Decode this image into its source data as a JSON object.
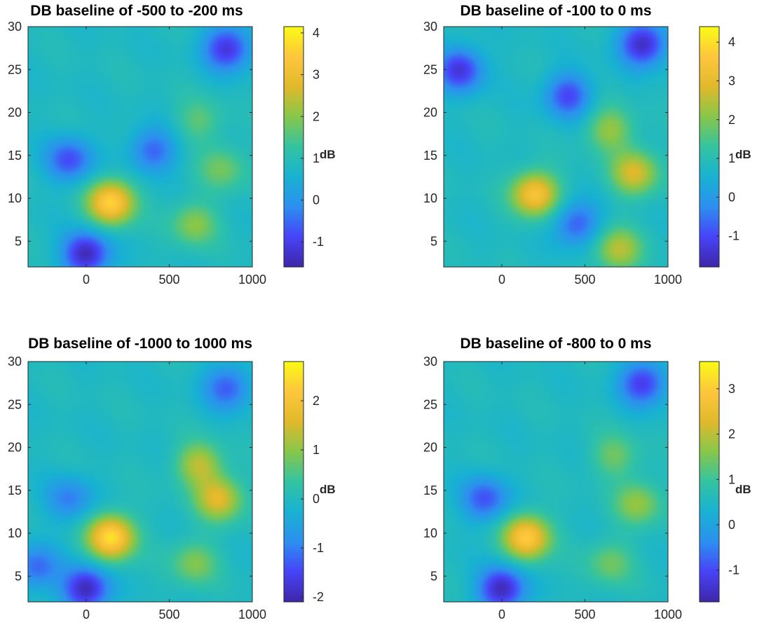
{
  "chart_data": [
    {
      "type": "heatmap",
      "title": "DB baseline of -500 to -200 ms",
      "xlim": [
        -350,
        1000
      ],
      "ylim": [
        2,
        30
      ],
      "xticks": [
        0,
        500,
        1000
      ],
      "yticks": [
        5,
        10,
        15,
        20,
        25,
        30
      ],
      "colorbar": {
        "label": "dB",
        "range": [
          -1.6,
          4.15
        ],
        "ticks": [
          -1,
          0,
          1,
          2,
          3,
          4
        ]
      },
      "features": [
        {
          "x": 150,
          "y": 9.5,
          "value": 3.6
        },
        {
          "x": 650,
          "y": 7.0,
          "value": 2.0
        },
        {
          "x": 820,
          "y": 13.5,
          "value": 1.8
        },
        {
          "x": 680,
          "y": 19.0,
          "value": 1.6
        },
        {
          "x": 0,
          "y": 3.5,
          "value": -1.5
        },
        {
          "x": -100,
          "y": 14.5,
          "value": -0.8
        },
        {
          "x": 400,
          "y": 15.5,
          "value": -0.6
        },
        {
          "x": 850,
          "y": 27.5,
          "value": -1.2
        }
      ]
    },
    {
      "type": "heatmap",
      "title": "DB baseline of -100 to 0 ms",
      "xlim": [
        -350,
        1000
      ],
      "ylim": [
        2,
        30
      ],
      "xticks": [
        0,
        500,
        1000
      ],
      "yticks": [
        5,
        10,
        15,
        20,
        25,
        30
      ],
      "colorbar": {
        "label": "dB",
        "range": [
          -1.8,
          4.4
        ],
        "ticks": [
          -1,
          0,
          1,
          2,
          3,
          4
        ]
      },
      "features": [
        {
          "x": 200,
          "y": 10.5,
          "value": 3.5
        },
        {
          "x": 800,
          "y": 13.0,
          "value": 2.8
        },
        {
          "x": 650,
          "y": 18.0,
          "value": 2.2
        },
        {
          "x": 700,
          "y": 4.0,
          "value": 2.5
        },
        {
          "x": -250,
          "y": 25.0,
          "value": -1.3
        },
        {
          "x": 850,
          "y": 28.0,
          "value": -1.6
        },
        {
          "x": 400,
          "y": 22.0,
          "value": -1.0
        },
        {
          "x": 450,
          "y": 7.0,
          "value": -0.8
        }
      ]
    },
    {
      "type": "heatmap",
      "title": "DB baseline of -1000 to 1000 ms",
      "xlim": [
        -350,
        1000
      ],
      "ylim": [
        2,
        30
      ],
      "xticks": [
        0,
        500,
        1000
      ],
      "yticks": [
        5,
        10,
        15,
        20,
        25,
        30
      ],
      "colorbar": {
        "label": "dB",
        "range": [
          -2.1,
          2.8
        ],
        "ticks": [
          -2,
          -1,
          0,
          1,
          2
        ]
      },
      "features": [
        {
          "x": 150,
          "y": 9.5,
          "value": 2.5
        },
        {
          "x": 800,
          "y": 14.0,
          "value": 1.6
        },
        {
          "x": 680,
          "y": 18.0,
          "value": 1.3
        },
        {
          "x": 650,
          "y": 6.5,
          "value": 0.9
        },
        {
          "x": 0,
          "y": 3.5,
          "value": -2.0
        },
        {
          "x": -100,
          "y": 14.0,
          "value": -1.0
        },
        {
          "x": -300,
          "y": 6.0,
          "value": -1.2
        },
        {
          "x": 850,
          "y": 27.0,
          "value": -1.3
        }
      ]
    },
    {
      "type": "heatmap",
      "title": "DB baseline of -800 to 0 ms",
      "xlim": [
        -350,
        1000
      ],
      "ylim": [
        2,
        30
      ],
      "xticks": [
        0,
        500,
        1000
      ],
      "yticks": [
        5,
        10,
        15,
        20,
        25,
        30
      ],
      "colorbar": {
        "label": "dB",
        "range": [
          -1.7,
          3.6
        ],
        "ticks": [
          -1,
          0,
          1,
          2,
          3
        ]
      },
      "features": [
        {
          "x": 150,
          "y": 9.5,
          "value": 3.0
        },
        {
          "x": 820,
          "y": 13.5,
          "value": 1.7
        },
        {
          "x": 680,
          "y": 19.0,
          "value": 1.4
        },
        {
          "x": 650,
          "y": 6.5,
          "value": 1.4
        },
        {
          "x": 0,
          "y": 3.5,
          "value": -1.6
        },
        {
          "x": -100,
          "y": 14.0,
          "value": -0.9
        },
        {
          "x": 850,
          "y": 27.5,
          "value": -1.2
        }
      ]
    }
  ],
  "colormap": [
    "#3e26a8",
    "#4743f8",
    "#2d8ff0",
    "#18b2d2",
    "#34c3a1",
    "#87c74a",
    "#e1b92b",
    "#fec63c",
    "#f9fb15"
  ]
}
